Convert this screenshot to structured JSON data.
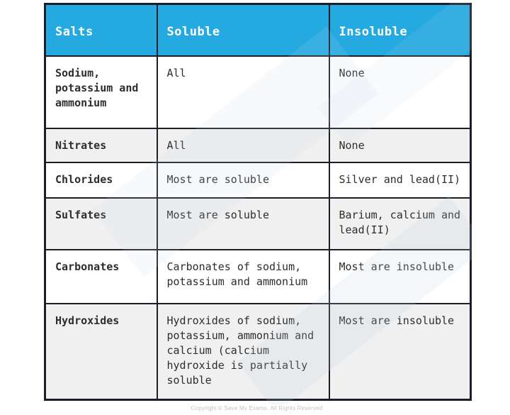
{
  "page": {
    "copyright": "Copyright © Save My Exams. All Rights Reserved"
  },
  "colors": {
    "header_bg": "#24a9e1",
    "header_text": "#ffffff",
    "border": "#1d1d27",
    "alt_row_bg": "#f0f0f0",
    "body_text": "#2d2d2d"
  },
  "table": {
    "columns": [
      "Salts",
      "Soluble",
      "Insoluble"
    ],
    "rows": [
      {
        "salt": "Sodium, potassium and ammonium",
        "soluble": "All",
        "insoluble": "None"
      },
      {
        "salt": "Nitrates",
        "soluble": "All",
        "insoluble": "None"
      },
      {
        "salt": "Chlorides",
        "soluble": "Most are soluble",
        "insoluble": "Silver and lead(II)"
      },
      {
        "salt": "Sulfates",
        "soluble": "Most are soluble",
        "insoluble": "Barium, calcium and lead(II)"
      },
      {
        "salt": "Carbonates",
        "soluble": "Carbonates of sodium, potassium and ammonium",
        "insoluble": "Most are insoluble"
      },
      {
        "salt": "Hydroxides",
        "soluble": "Hydroxides of sodium, potassium, ammonium and calcium (calcium hydroxide is partially soluble",
        "insoluble": "Most are insoluble"
      }
    ]
  }
}
